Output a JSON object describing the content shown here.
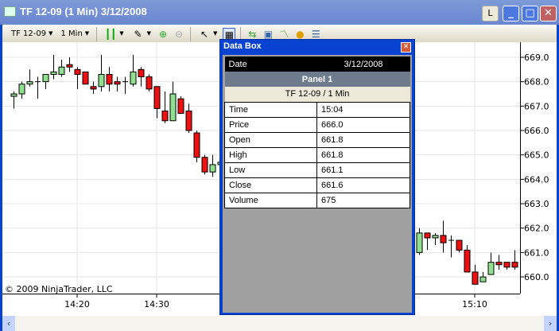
{
  "window": {
    "title": "TF 12-09 (1 Min)  3/12/2008",
    "l_button": "L"
  },
  "toolbar": {
    "instrument": "TF 12-09",
    "interval": "1 Min",
    "icons": [
      "candlestick-icon",
      "pencil-icon",
      "zoom-in-icon",
      "zoom-out-icon",
      "cursor-icon",
      "data-box-icon",
      "instrument-icon",
      "properties-icon",
      "indicators-icon",
      "strategies-icon",
      "order-icon"
    ]
  },
  "copyright": "© 2009 NinjaTrader, LLC",
  "data_box": {
    "title": "Data Box",
    "date_label": "Date",
    "date": "3/12/2008",
    "panel": "Panel 1",
    "instrument": "TF 12-09 / 1 Min",
    "rows": [
      {
        "label": "Time",
        "value": "15:04"
      },
      {
        "label": "Price",
        "value": "666.0"
      },
      {
        "label": "Open",
        "value": "661.8"
      },
      {
        "label": "High",
        "value": "661.8"
      },
      {
        "label": "Low",
        "value": "661.1"
      },
      {
        "label": "Close",
        "value": "661.6"
      },
      {
        "label": "Volume",
        "value": "675"
      }
    ]
  },
  "colors": {
    "up": "#90e090",
    "down": "#ee1111",
    "grid": "#e6e6e6"
  },
  "chart_data": {
    "type": "candlestick",
    "ylim": [
      659.5,
      669.2
    ],
    "yticks": [
      "669.0",
      "668.0",
      "667.0",
      "666.0",
      "665.0",
      "664.0",
      "663.0",
      "662.0",
      "661.0",
      "660.0"
    ],
    "xticks": [
      "14:20",
      "14:30",
      "15:10"
    ],
    "candles": [
      {
        "t": "14:12",
        "o": 667.4,
        "h": 667.6,
        "l": 666.9,
        "c": 667.5
      },
      {
        "t": "14:13",
        "o": 667.5,
        "h": 668.0,
        "l": 667.3,
        "c": 667.9
      },
      {
        "t": "14:14",
        "o": 667.9,
        "h": 668.5,
        "l": 667.8,
        "c": 668.0
      },
      {
        "t": "14:15",
        "o": 668.0,
        "h": 668.2,
        "l": 667.3,
        "c": 668.0
      },
      {
        "t": "14:16",
        "o": 668.0,
        "h": 668.3,
        "l": 667.7,
        "c": 668.3
      },
      {
        "t": "14:17",
        "o": 668.3,
        "h": 669.1,
        "l": 668.1,
        "c": 668.4
      },
      {
        "t": "14:18",
        "o": 668.3,
        "h": 668.9,
        "l": 668.2,
        "c": 668.6
      },
      {
        "t": "14:19",
        "o": 668.7,
        "h": 669.0,
        "l": 668.4,
        "c": 668.6
      },
      {
        "t": "14:20",
        "o": 668.5,
        "h": 668.6,
        "l": 667.7,
        "c": 668.3
      },
      {
        "t": "14:21",
        "o": 668.4,
        "h": 668.4,
        "l": 667.9,
        "c": 667.9
      },
      {
        "t": "14:22",
        "o": 667.8,
        "h": 668.0,
        "l": 667.5,
        "c": 667.7
      },
      {
        "t": "14:23",
        "o": 667.8,
        "h": 669.1,
        "l": 667.6,
        "c": 668.3
      },
      {
        "t": "14:24",
        "o": 668.3,
        "h": 668.6,
        "l": 667.6,
        "c": 667.9
      },
      {
        "t": "14:25",
        "o": 668.0,
        "h": 668.2,
        "l": 667.6,
        "c": 667.9
      },
      {
        "t": "14:26",
        "o": 668.0,
        "h": 668.2,
        "l": 667.5,
        "c": 668.0
      },
      {
        "t": "14:27",
        "o": 667.9,
        "h": 669.1,
        "l": 667.8,
        "c": 668.4
      },
      {
        "t": "14:28",
        "o": 668.5,
        "h": 668.6,
        "l": 667.8,
        "c": 668.2
      },
      {
        "t": "14:29",
        "o": 668.2,
        "h": 668.3,
        "l": 667.6,
        "c": 667.7
      },
      {
        "t": "14:30",
        "o": 667.8,
        "h": 667.8,
        "l": 666.5,
        "c": 666.9
      },
      {
        "t": "14:31",
        "o": 666.8,
        "h": 667.6,
        "l": 666.3,
        "c": 666.4
      },
      {
        "t": "14:32",
        "o": 666.4,
        "h": 668.0,
        "l": 666.4,
        "c": 667.5
      },
      {
        "t": "14:33",
        "o": 667.3,
        "h": 667.4,
        "l": 666.7,
        "c": 666.7
      },
      {
        "t": "14:34",
        "o": 666.8,
        "h": 667.1,
        "l": 665.9,
        "c": 666.0
      },
      {
        "t": "14:35",
        "o": 665.9,
        "h": 666.0,
        "l": 664.7,
        "c": 664.9
      },
      {
        "t": "14:36",
        "o": 664.9,
        "h": 665.0,
        "l": 664.2,
        "c": 664.3
      },
      {
        "t": "14:37",
        "o": 664.3,
        "h": 665.0,
        "l": 664.1,
        "c": 664.6
      },
      {
        "t": "14:38",
        "o": 664.6,
        "h": 664.8,
        "l": 664.5,
        "c": 664.7
      },
      {
        "t": "15:03",
        "o": 661.0,
        "h": 662.0,
        "l": 660.9,
        "c": 661.8
      },
      {
        "t": "15:04",
        "o": 661.8,
        "h": 661.8,
        "l": 661.1,
        "c": 661.6
      },
      {
        "t": "15:05",
        "o": 661.6,
        "h": 661.8,
        "l": 661.3,
        "c": 661.7
      },
      {
        "t": "15:06",
        "o": 661.7,
        "h": 662.3,
        "l": 661.0,
        "c": 661.4
      },
      {
        "t": "15:07",
        "o": 661.5,
        "h": 661.7,
        "l": 660.8,
        "c": 661.5
      },
      {
        "t": "15:08",
        "o": 661.5,
        "h": 661.5,
        "l": 661.0,
        "c": 661.1
      },
      {
        "t": "15:09",
        "o": 661.1,
        "h": 661.3,
        "l": 660.2,
        "c": 660.2
      },
      {
        "t": "15:10",
        "o": 660.2,
        "h": 660.5,
        "l": 659.7,
        "c": 659.7
      },
      {
        "t": "15:11",
        "o": 659.8,
        "h": 660.2,
        "l": 659.8,
        "c": 660.0
      },
      {
        "t": "15:12",
        "o": 660.1,
        "h": 661.0,
        "l": 660.1,
        "c": 660.6
      },
      {
        "t": "15:13",
        "o": 660.6,
        "h": 660.9,
        "l": 660.3,
        "c": 660.5
      },
      {
        "t": "15:14",
        "o": 660.6,
        "h": 660.6,
        "l": 660.3,
        "c": 660.4
      },
      {
        "t": "15:15",
        "o": 660.6,
        "h": 661.1,
        "l": 660.3,
        "c": 660.4
      }
    ]
  }
}
